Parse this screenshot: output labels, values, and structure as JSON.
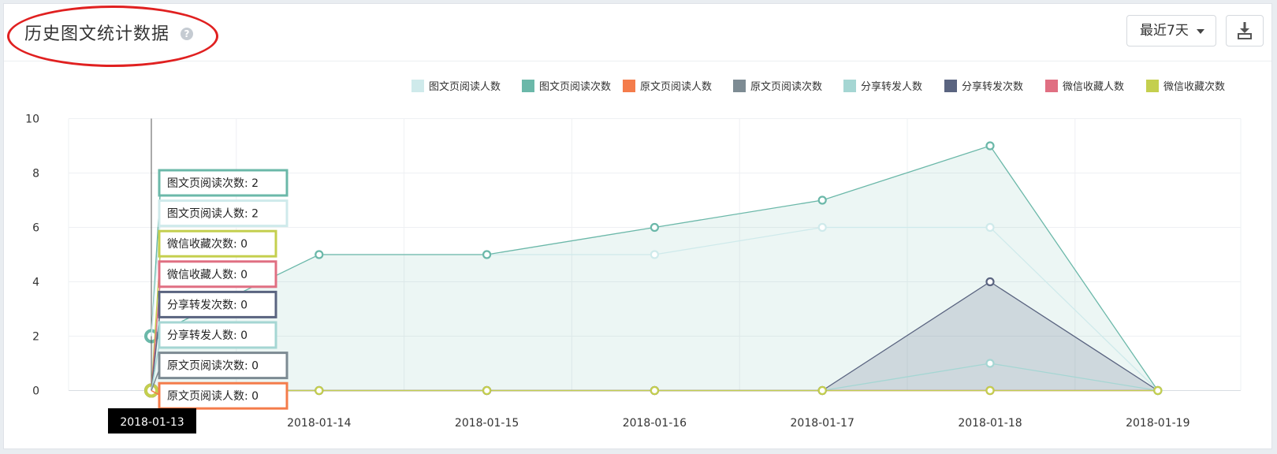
{
  "header": {
    "title": "历史图文统计数据",
    "help_icon": "question-circle-icon",
    "range_label": "最近7天",
    "download_icon": "download-icon"
  },
  "colors": {
    "page_read_users": "#cfeaeb",
    "page_read_count": "#6bb8a9",
    "orig_read_users": "#f47c4b",
    "orig_read_count": "#7d8b93",
    "share_users": "#a5d6d3",
    "share_count": "#5a6480",
    "fav_users": "#e06f82",
    "fav_count": "#c4cf4e",
    "annotation": "#e02020"
  },
  "chart_data": {
    "type": "line",
    "categories": [
      "2018-01-13",
      "2018-01-14",
      "2018-01-15",
      "2018-01-16",
      "2018-01-17",
      "2018-01-18",
      "2018-01-19"
    ],
    "ylim": [
      0,
      10
    ],
    "yticks": [
      0,
      2,
      4,
      6,
      8,
      10
    ],
    "grid": true,
    "legend_position": "top-right",
    "series": [
      {
        "name": "图文页阅读人数",
        "key": "page_read_users",
        "values": [
          2,
          5,
          5,
          5,
          6,
          6,
          0
        ],
        "area": false
      },
      {
        "name": "图文页阅读次数",
        "key": "page_read_count",
        "values": [
          2,
          5,
          5,
          6,
          7,
          9,
          0
        ],
        "area": true
      },
      {
        "name": "原文页阅读人数",
        "key": "orig_read_users",
        "values": [
          0,
          0,
          0,
          0,
          0,
          0,
          0
        ],
        "area": false
      },
      {
        "name": "原文页阅读次数",
        "key": "orig_read_count",
        "values": [
          0,
          0,
          0,
          0,
          0,
          0,
          0
        ],
        "area": false
      },
      {
        "name": "分享转发人数",
        "key": "share_users",
        "values": [
          0,
          0,
          0,
          0,
          0,
          1,
          0
        ],
        "area": false
      },
      {
        "name": "分享转发次数",
        "key": "share_count",
        "values": [
          0,
          0,
          0,
          0,
          0,
          4,
          0
        ],
        "area": true
      },
      {
        "name": "微信收藏人数",
        "key": "fav_users",
        "values": [
          0,
          0,
          0,
          0,
          0,
          0,
          0
        ],
        "area": false
      },
      {
        "name": "微信收藏次数",
        "key": "fav_count",
        "values": [
          0,
          0,
          0,
          0,
          0,
          0,
          0
        ],
        "area": false
      }
    ],
    "hover": {
      "category": "2018-01-13",
      "order": [
        "page_read_count",
        "page_read_users",
        "fav_count",
        "fav_users",
        "share_count",
        "share_users",
        "orig_read_count",
        "orig_read_users"
      ]
    }
  }
}
